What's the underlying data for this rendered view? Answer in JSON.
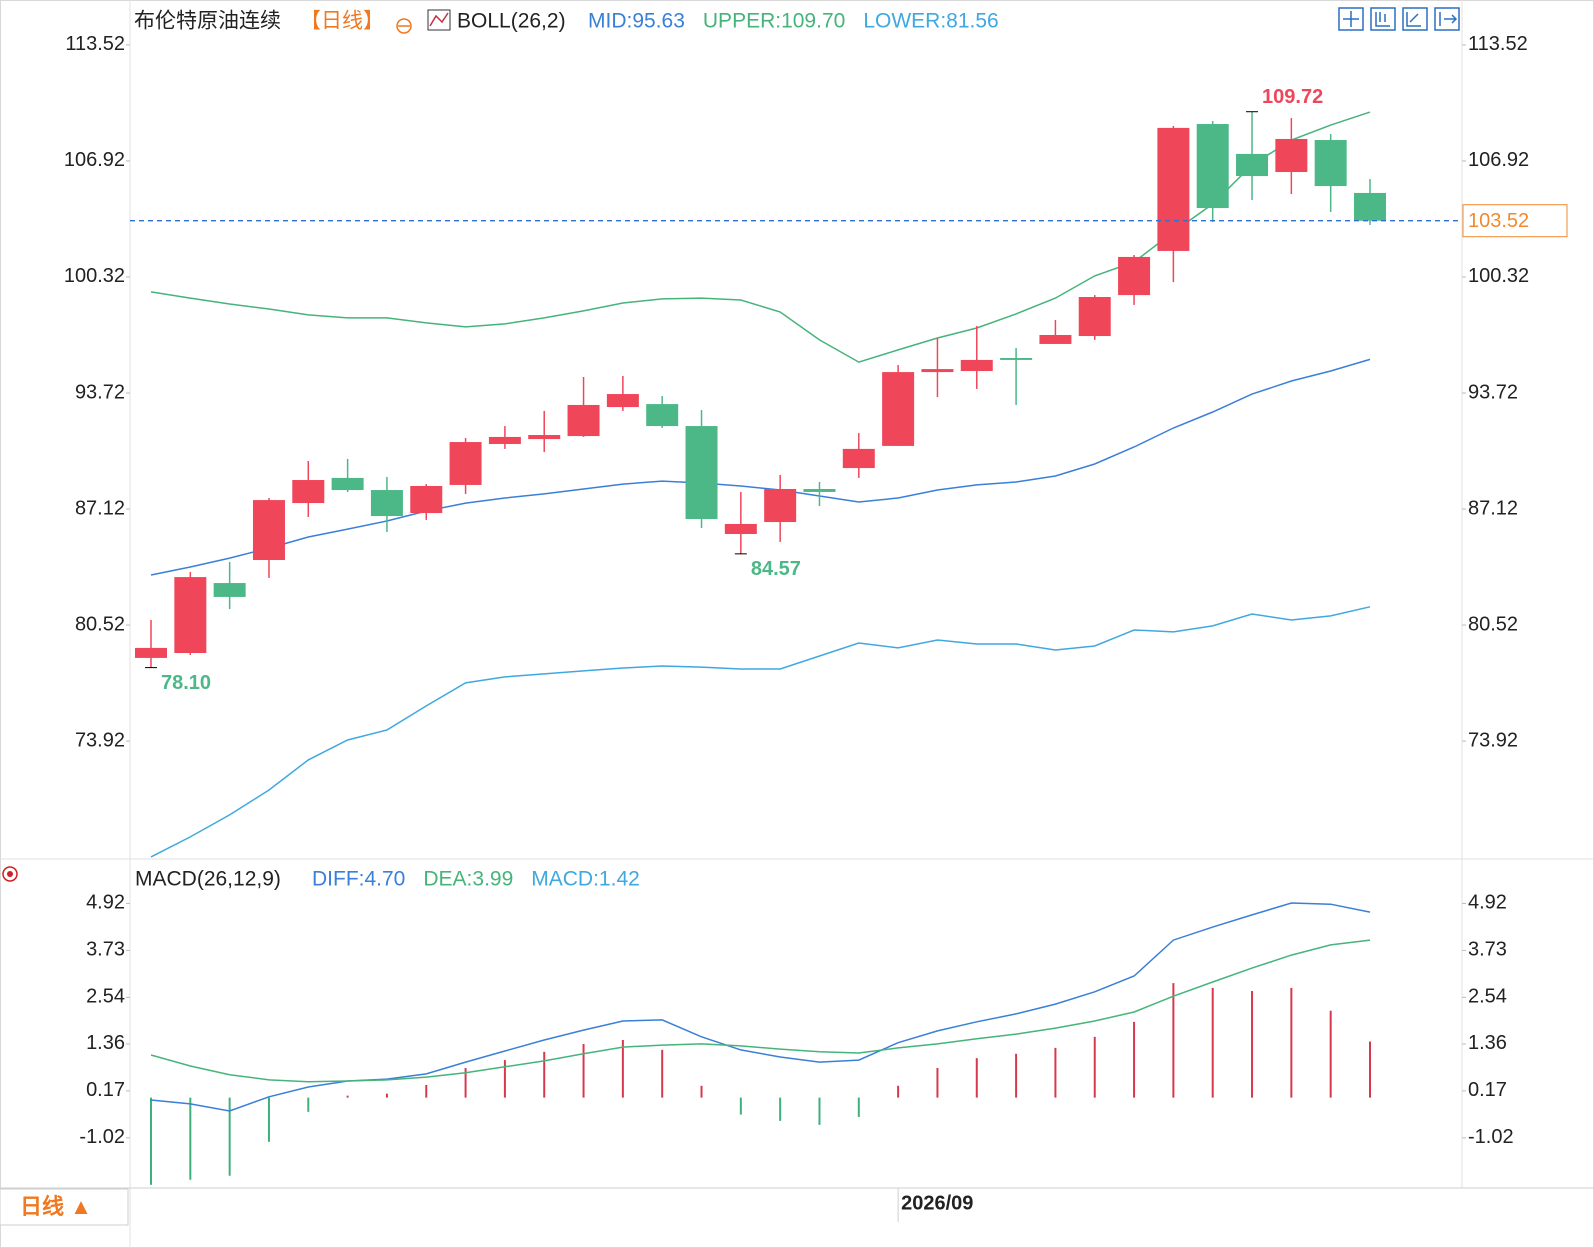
{
  "chart_data": [
    {
      "type": "candlestick",
      "title": "布伦特原油连续",
      "period": "【日线】",
      "indicator": "BOLL(26,2)",
      "up_color": "#f0465a",
      "down_color": "#4db887",
      "open": [
        78.65,
        78.93,
        82.91,
        84.22,
        87.46,
        88.89,
        88.2,
        86.89,
        88.49,
        90.82,
        91.1,
        91.27,
        92.92,
        93.09,
        91.84,
        85.7,
        86.38,
        88.26,
        89.45,
        90.71,
        94.91,
        94.97,
        95.71,
        96.51,
        96.96,
        99.29,
        101.8,
        109.02,
        107.32,
        106.29,
        108.11,
        105.1
      ],
      "high": [
        80.81,
        83.54,
        84.11,
        87.75,
        89.85,
        89.97,
        88.94,
        88.54,
        91.16,
        91.84,
        92.7,
        94.63,
        94.69,
        93.55,
        92.75,
        88.09,
        89.06,
        88.66,
        91.44,
        95.31,
        96.85,
        97.53,
        96.28,
        97.87,
        99.29,
        101.57,
        108.91,
        109.19,
        109.72,
        109.36,
        108.45,
        105.89
      ],
      "low": [
        78.1,
        78.82,
        81.43,
        83.2,
        86.67,
        88.09,
        85.81,
        86.5,
        87.98,
        90.54,
        90.36,
        91.22,
        92.7,
        91.73,
        86.04,
        84.57,
        85.25,
        87.29,
        88.89,
        90.71,
        93.49,
        93.95,
        93.04,
        96.51,
        96.74,
        98.73,
        100.03,
        103.45,
        104.7,
        105.04,
        104.02,
        103.28
      ],
      "close": [
        79.22,
        83.25,
        82.12,
        87.63,
        88.77,
        88.2,
        86.72,
        88.43,
        90.93,
        91.22,
        91.33,
        93.04,
        93.66,
        91.84,
        86.55,
        86.27,
        88.26,
        88.09,
        90.54,
        94.91,
        95.08,
        95.6,
        95.6,
        97.02,
        99.18,
        101.46,
        108.8,
        104.24,
        106.06,
        108.17,
        105.49,
        103.52
      ],
      "high_labels": [
        null,
        null,
        null,
        null,
        null,
        null,
        null,
        null,
        null,
        null,
        null,
        null,
        null,
        null,
        null,
        null,
        null,
        null,
        null,
        null,
        null,
        null,
        null,
        null,
        null,
        null,
        null,
        null,
        "109.72",
        null,
        null,
        null
      ],
      "low_labels": [
        "78.10",
        null,
        null,
        null,
        null,
        null,
        null,
        null,
        null,
        null,
        null,
        null,
        null,
        null,
        null,
        "84.57",
        null,
        null,
        null,
        null,
        null,
        null,
        null,
        null,
        null,
        null,
        null,
        null,
        null,
        null,
        null,
        null
      ],
      "series": [
        {
          "name": "MID:95.63",
          "color": "#3a7fd8",
          "values": [
            83.37,
            83.82,
            84.33,
            84.9,
            85.53,
            85.98,
            86.44,
            87.01,
            87.46,
            87.75,
            87.98,
            88.26,
            88.54,
            88.71,
            88.6,
            88.43,
            88.2,
            87.86,
            87.52,
            87.75,
            88.2,
            88.49,
            88.66,
            89.0,
            89.68,
            90.65,
            91.73,
            92.64,
            93.66,
            94.4,
            94.97,
            95.63
          ]
        },
        {
          "name": "UPPER:109.70",
          "color": "#46b47a",
          "values": [
            99.47,
            99.12,
            98.78,
            98.5,
            98.16,
            97.99,
            97.99,
            97.71,
            97.48,
            97.65,
            97.99,
            98.39,
            98.84,
            99.07,
            99.12,
            99.01,
            98.33,
            96.74,
            95.48,
            96.17,
            96.85,
            97.42,
            98.22,
            99.12,
            100.38,
            101.17,
            102.88,
            104.47,
            106.69,
            108.11,
            108.96,
            109.7
          ]
        },
        {
          "name": "LOWER:81.56",
          "color": "#40a8e0",
          "values": [
            67.33,
            68.47,
            69.72,
            71.14,
            72.85,
            73.98,
            74.55,
            75.92,
            77.23,
            77.57,
            77.74,
            77.91,
            78.08,
            78.19,
            78.13,
            78.02,
            78.02,
            78.76,
            79.5,
            79.22,
            79.67,
            79.44,
            79.44,
            79.1,
            79.33,
            80.24,
            80.13,
            80.47,
            81.15,
            80.81,
            81.04,
            81.56
          ]
        }
      ],
      "ylim": [
        67.27,
        115.79
      ],
      "yticks": [
        113.52,
        106.92,
        100.32,
        93.72,
        87.12,
        80.52,
        73.92
      ],
      "last_price_color": "#f08a30"
    },
    {
      "type": "macd",
      "indicator": "MACD(26,12,9)",
      "categories": [
        null,
        null,
        null,
        null,
        null,
        null,
        null,
        null,
        null,
        null,
        null,
        null,
        null,
        null,
        null,
        null,
        null,
        null,
        null,
        "2026/09",
        null,
        null,
        null,
        null,
        null,
        null,
        null,
        null,
        null,
        null,
        null,
        null
      ],
      "period_button": "日线 ▲",
      "up_color": "#d8384c",
      "down_color": "#3fb07a",
      "bars": {
        "name": "MACD:1.42",
        "color": "#40a8e0",
        "values": [
          -2.21,
          -2.08,
          -1.98,
          -1.12,
          -0.36,
          0.05,
          0.1,
          0.32,
          0.75,
          0.95,
          1.16,
          1.36,
          1.46,
          1.21,
          0.3,
          -0.43,
          -0.59,
          -0.69,
          -0.49,
          0.3,
          0.75,
          1.0,
          1.11,
          1.26,
          1.54,
          1.92,
          2.9,
          2.78,
          2.7,
          2.78,
          2.2,
          1.42
        ]
      },
      "series": [
        {
          "name": "DIFF:4.70",
          "color": "#3a7fd8",
          "values": [
            -0.06,
            -0.16,
            -0.34,
            0.02,
            0.27,
            0.42,
            0.47,
            0.6,
            0.9,
            1.18,
            1.46,
            1.71,
            1.94,
            1.97,
            1.54,
            1.21,
            1.03,
            0.9,
            0.95,
            1.39,
            1.69,
            1.92,
            2.12,
            2.37,
            2.68,
            3.08,
            3.99,
            4.32,
            4.63,
            4.93,
            4.9,
            4.7
          ]
        },
        {
          "name": "DEA:3.99",
          "color": "#46b47a",
          "values": [
            1.08,
            0.8,
            0.58,
            0.45,
            0.4,
            0.42,
            0.45,
            0.52,
            0.63,
            0.78,
            0.93,
            1.11,
            1.28,
            1.33,
            1.36,
            1.31,
            1.23,
            1.16,
            1.13,
            1.26,
            1.36,
            1.49,
            1.61,
            1.76,
            1.94,
            2.17,
            2.57,
            2.93,
            3.28,
            3.61,
            3.87,
            3.99
          ]
        }
      ],
      "ylim": [
        -2.29,
        6.02
      ],
      "yticks": [
        4.92,
        3.73,
        2.54,
        1.36,
        0.17,
        -1.02
      ]
    }
  ]
}
